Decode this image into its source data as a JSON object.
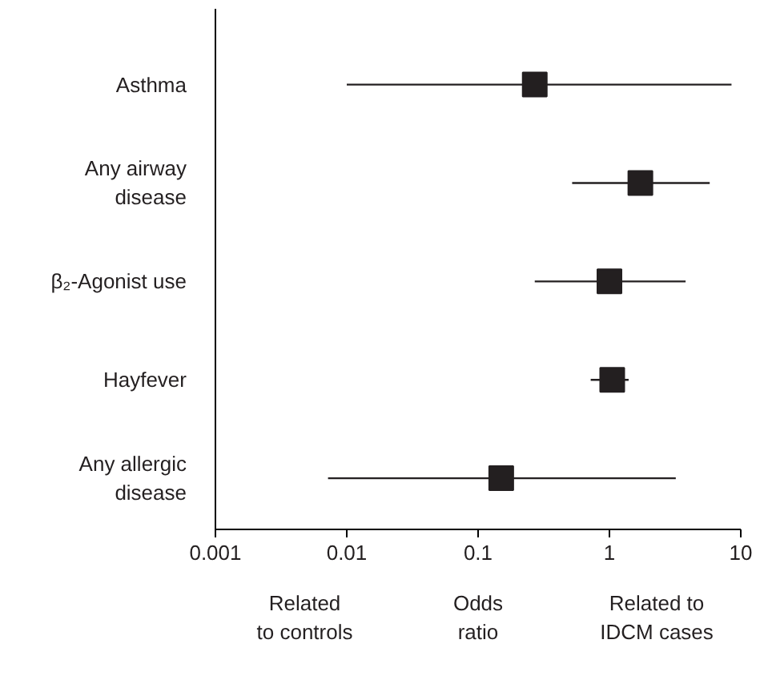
{
  "chart_data": {
    "type": "scatter",
    "orientation": "horizontal",
    "categories": [
      "Asthma",
      "Any airway\ndisease",
      "β₂-Agonist use",
      "Hayfever",
      "Any allergic\ndisease"
    ],
    "values": [
      0.27,
      1.72,
      1.0,
      1.05,
      0.15
    ],
    "errors": [
      [
        0.01,
        8.5
      ],
      [
        0.52,
        5.8
      ],
      [
        0.27,
        3.8
      ],
      [
        0.72,
        1.4
      ],
      [
        0.0072,
        3.2
      ]
    ],
    "color": "#231f20",
    "marker": "square",
    "log": "x",
    "xlim": [
      0.001,
      10
    ],
    "xticks": [
      0.001,
      0.01,
      0.1,
      1,
      10
    ],
    "xlabel": "Odds\nratio",
    "annotations": [
      "Related\nto controls",
      "Related to\nIDCM cases"
    ],
    "grid": false
  }
}
